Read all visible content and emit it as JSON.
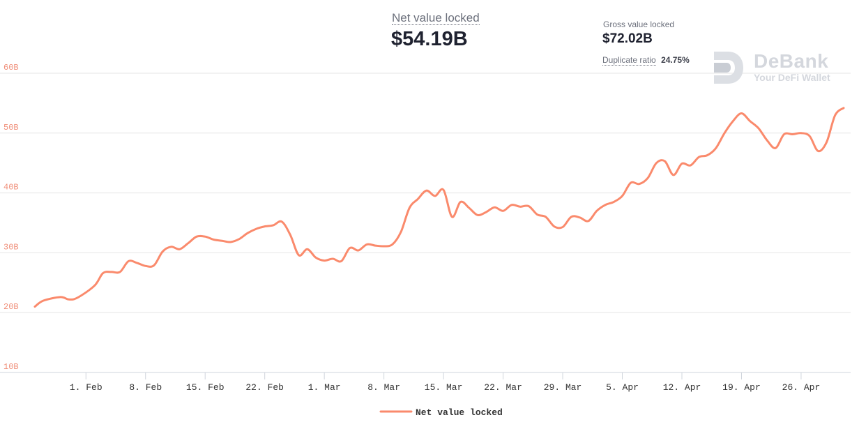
{
  "header": {
    "net_label": "Net value locked",
    "net_value": "$54.19B",
    "gross_label": "Gross value locked",
    "gross_value": "$72.02B",
    "dup_label": "Duplicate ratio",
    "dup_value": "24.75%"
  },
  "brand": {
    "name": "DeBank",
    "tagline": "Your DeFi Wallet",
    "icon": "debank-logo-icon"
  },
  "chart_data": {
    "type": "line",
    "title": "",
    "xlabel": "",
    "ylabel": "",
    "ylim": [
      10,
      60
    ],
    "xlim": [
      "2021-01-26",
      "2021-04-28"
    ],
    "y_ticks": [
      {
        "value": 10,
        "label": "10B"
      },
      {
        "value": 20,
        "label": "20B"
      },
      {
        "value": 30,
        "label": "30B"
      },
      {
        "value": 40,
        "label": "40B"
      },
      {
        "value": 50,
        "label": "50B"
      },
      {
        "value": 60,
        "label": "60B"
      }
    ],
    "x_ticks": [
      {
        "date": "2021-02-01",
        "label": "1. Feb"
      },
      {
        "date": "2021-02-08",
        "label": "8. Feb"
      },
      {
        "date": "2021-02-15",
        "label": "15. Feb"
      },
      {
        "date": "2021-02-22",
        "label": "22. Feb"
      },
      {
        "date": "2021-03-01",
        "label": "1. Mar"
      },
      {
        "date": "2021-03-08",
        "label": "8. Mar"
      },
      {
        "date": "2021-03-15",
        "label": "15. Mar"
      },
      {
        "date": "2021-03-22",
        "label": "22. Mar"
      },
      {
        "date": "2021-03-29",
        "label": "29. Mar"
      },
      {
        "date": "2021-04-05",
        "label": "5. Apr"
      },
      {
        "date": "2021-04-12",
        "label": "12. Apr"
      },
      {
        "date": "2021-04-19",
        "label": "19. Apr"
      },
      {
        "date": "2021-04-26",
        "label": "26. Apr"
      }
    ],
    "grid": true,
    "legend": "bottom-center",
    "colors": {
      "line": "#fa8a6c",
      "grid": "#e6e6e6"
    },
    "series": [
      {
        "name": "Net value locked",
        "points": [
          [
            "2021-01-26",
            21.0
          ],
          [
            "2021-01-27",
            22.0
          ],
          [
            "2021-01-29",
            22.6
          ],
          [
            "2021-01-30",
            22.2
          ],
          [
            "2021-01-31",
            22.5
          ],
          [
            "2021-02-02",
            24.5
          ],
          [
            "2021-02-03",
            26.6
          ],
          [
            "2021-02-04",
            26.8
          ],
          [
            "2021-02-05",
            26.8
          ],
          [
            "2021-02-06",
            28.6
          ],
          [
            "2021-02-07",
            28.3
          ],
          [
            "2021-02-08",
            27.8
          ],
          [
            "2021-02-09",
            27.9
          ],
          [
            "2021-02-10",
            30.2
          ],
          [
            "2021-02-11",
            31.0
          ],
          [
            "2021-02-12",
            30.6
          ],
          [
            "2021-02-13",
            31.6
          ],
          [
            "2021-02-14",
            32.7
          ],
          [
            "2021-02-15",
            32.7
          ],
          [
            "2021-02-16",
            32.2
          ],
          [
            "2021-02-17",
            32.0
          ],
          [
            "2021-02-18",
            31.8
          ],
          [
            "2021-02-19",
            32.3
          ],
          [
            "2021-02-20",
            33.3
          ],
          [
            "2021-02-21",
            34.0
          ],
          [
            "2021-02-22",
            34.4
          ],
          [
            "2021-02-23",
            34.6
          ],
          [
            "2021-02-24",
            35.2
          ],
          [
            "2021-02-25",
            33.0
          ],
          [
            "2021-02-26",
            29.6
          ],
          [
            "2021-02-27",
            30.6
          ],
          [
            "2021-02-28",
            29.2
          ],
          [
            "2021-03-01",
            28.7
          ],
          [
            "2021-03-02",
            29.0
          ],
          [
            "2021-03-03",
            28.6
          ],
          [
            "2021-03-04",
            30.8
          ],
          [
            "2021-03-05",
            30.4
          ],
          [
            "2021-03-06",
            31.4
          ],
          [
            "2021-03-07",
            31.2
          ],
          [
            "2021-03-08",
            31.1
          ],
          [
            "2021-03-09",
            31.4
          ],
          [
            "2021-03-10",
            33.5
          ],
          [
            "2021-03-11",
            37.5
          ],
          [
            "2021-03-12",
            39.0
          ],
          [
            "2021-03-13",
            40.4
          ],
          [
            "2021-03-14",
            39.5
          ],
          [
            "2021-03-15",
            40.5
          ],
          [
            "2021-03-16",
            36.0
          ],
          [
            "2021-03-17",
            38.5
          ],
          [
            "2021-03-18",
            37.5
          ],
          [
            "2021-03-19",
            36.3
          ],
          [
            "2021-03-20",
            36.8
          ],
          [
            "2021-03-21",
            37.6
          ],
          [
            "2021-03-22",
            37.0
          ],
          [
            "2021-03-23",
            38.0
          ],
          [
            "2021-03-24",
            37.7
          ],
          [
            "2021-03-25",
            37.8
          ],
          [
            "2021-03-26",
            36.4
          ],
          [
            "2021-03-27",
            36.0
          ],
          [
            "2021-03-28",
            34.4
          ],
          [
            "2021-03-29",
            34.3
          ],
          [
            "2021-03-30",
            36.0
          ],
          [
            "2021-03-31",
            35.9
          ],
          [
            "2021-04-01",
            35.3
          ],
          [
            "2021-04-02",
            37.0
          ],
          [
            "2021-04-03",
            38.0
          ],
          [
            "2021-04-04",
            38.5
          ],
          [
            "2021-04-05",
            39.5
          ],
          [
            "2021-04-06",
            41.7
          ],
          [
            "2021-04-07",
            41.5
          ],
          [
            "2021-04-08",
            42.5
          ],
          [
            "2021-04-09",
            45.0
          ],
          [
            "2021-04-10",
            45.3
          ],
          [
            "2021-04-11",
            43.0
          ],
          [
            "2021-04-12",
            44.9
          ],
          [
            "2021-04-13",
            44.6
          ],
          [
            "2021-04-14",
            46.0
          ],
          [
            "2021-04-15",
            46.3
          ],
          [
            "2021-04-16",
            47.5
          ],
          [
            "2021-04-17",
            50.0
          ],
          [
            "2021-04-18",
            52.0
          ],
          [
            "2021-04-19",
            53.3
          ],
          [
            "2021-04-20",
            52.0
          ],
          [
            "2021-04-21",
            50.8
          ],
          [
            "2021-04-22",
            48.8
          ],
          [
            "2021-04-23",
            47.5
          ],
          [
            "2021-04-24",
            49.8
          ],
          [
            "2021-04-25",
            49.8
          ],
          [
            "2021-04-26",
            50.0
          ],
          [
            "2021-04-27",
            49.5
          ],
          [
            "2021-04-28",
            47.0
          ],
          [
            "2021-04-29",
            48.5
          ],
          [
            "2021-04-30",
            53.0
          ],
          [
            "2021-05-01",
            54.2
          ]
        ]
      }
    ]
  }
}
